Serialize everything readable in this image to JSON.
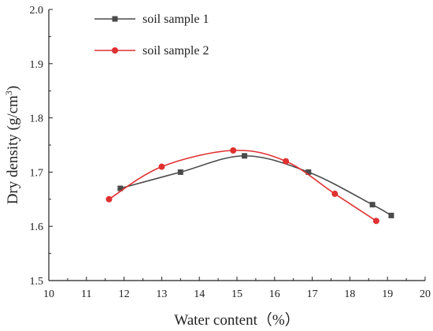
{
  "chart_data": {
    "type": "line",
    "title": "",
    "xlabel": "Water content（%）",
    "ylabel": "Dry density (g/cm",
    "ylabel_sup": "3",
    "ylabel_close": ")",
    "xlim": [
      10,
      20
    ],
    "ylim": [
      1.5,
      2.0
    ],
    "xticks": [
      "10",
      "11",
      "12",
      "13",
      "14",
      "15",
      "16",
      "17",
      "18",
      "19",
      "20"
    ],
    "yticks": [
      "1.5",
      "1.6",
      "1.7",
      "1.8",
      "1.9",
      "2.0"
    ],
    "grid": false,
    "legend": "top-left",
    "series": [
      {
        "name": "soil sample 1",
        "color": "#4a4a4a",
        "marker": "square",
        "x": [
          11.9,
          13.5,
          15.2,
          16.9,
          18.6,
          19.1
        ],
        "y": [
          1.67,
          1.7,
          1.73,
          1.7,
          1.64,
          1.62
        ]
      },
      {
        "name": "soil sample 2",
        "color": "#e03030",
        "marker": "circle",
        "x": [
          11.6,
          13.0,
          14.9,
          16.3,
          17.6,
          18.7
        ],
        "y": [
          1.65,
          1.71,
          1.74,
          1.72,
          1.66,
          1.61
        ]
      }
    ]
  }
}
